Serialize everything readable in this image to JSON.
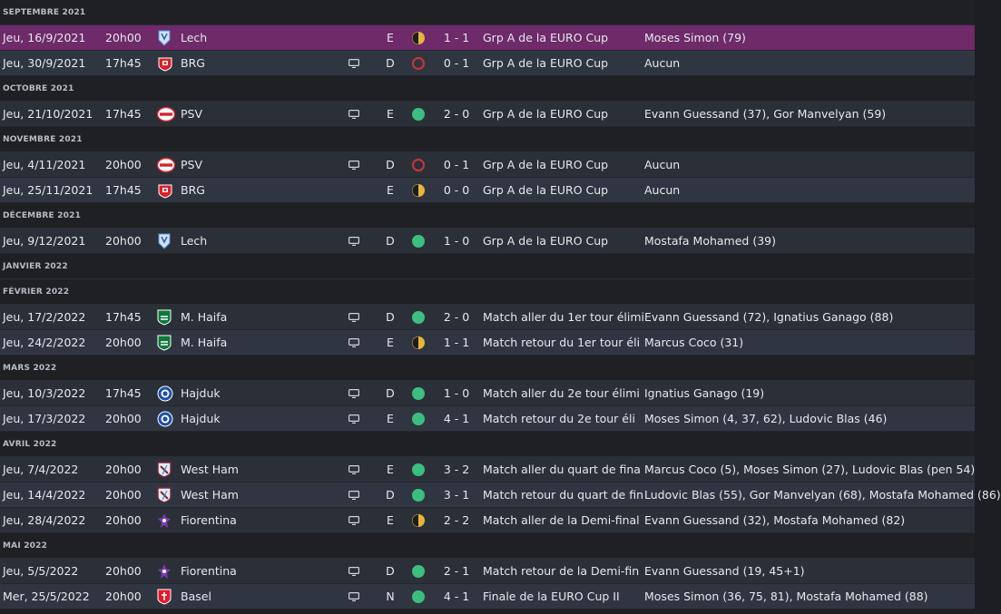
{
  "colors": {
    "win": "#3cbf7e",
    "draw": "#e8b43a",
    "loss": "#c8343a",
    "highlight_row": "#6e2a69"
  },
  "groups": [
    {
      "month": "SEPTEMBRE 2021",
      "matches": [
        {
          "date": "Jeu, 16/9/2021",
          "time": "20h00",
          "crest": "lech-crest",
          "team": "Lech",
          "tv": false,
          "venue": "E",
          "result": "draw",
          "score": "1 - 1",
          "competition": "Grp A de la EURO Cup",
          "scorers": "Moses Simon (79)",
          "highlight": true
        },
        {
          "date": "Jeu, 30/9/2021",
          "time": "17h45",
          "crest": "brg-crest",
          "team": "BRG",
          "tv": true,
          "venue": "D",
          "result": "loss",
          "score": "0 - 1",
          "competition": "Grp A de la EURO Cup",
          "scorers": "Aucun"
        }
      ]
    },
    {
      "month": "OCTOBRE 2021",
      "matches": [
        {
          "date": "Jeu, 21/10/2021",
          "time": "17h45",
          "crest": "psv-crest",
          "team": "PSV",
          "tv": true,
          "venue": "E",
          "result": "win",
          "score": "2 - 0",
          "competition": "Grp A de la EURO Cup",
          "scorers": "Evann Guessand (37), Gor Manvelyan (59)"
        }
      ]
    },
    {
      "month": "NOVEMBRE 2021",
      "matches": [
        {
          "date": "Jeu, 4/11/2021",
          "time": "20h00",
          "crest": "psv-crest",
          "team": "PSV",
          "tv": true,
          "venue": "D",
          "result": "loss",
          "score": "0 - 1",
          "competition": "Grp A de la EURO Cup",
          "scorers": "Aucun"
        },
        {
          "date": "Jeu, 25/11/2021",
          "time": "17h45",
          "crest": "brg-crest",
          "team": "BRG",
          "tv": false,
          "venue": "E",
          "result": "draw",
          "score": "0 - 0",
          "competition": "Grp A de la EURO Cup",
          "scorers": "Aucun"
        }
      ]
    },
    {
      "month": "DÉCEMBRE 2021",
      "matches": [
        {
          "date": "Jeu, 9/12/2021",
          "time": "20h00",
          "crest": "lech-crest",
          "team": "Lech",
          "tv": true,
          "venue": "D",
          "result": "win",
          "score": "1 - 0",
          "competition": "Grp A de la EURO Cup",
          "scorers": "Mostafa Mohamed (39)"
        }
      ]
    },
    {
      "month": "JANVIER 2022",
      "matches": []
    },
    {
      "month": "FÉVRIER 2022",
      "matches": [
        {
          "date": "Jeu, 17/2/2022",
          "time": "17h45",
          "crest": "haifa-crest",
          "team": "M. Haifa",
          "tv": true,
          "venue": "D",
          "result": "win",
          "score": "2 - 0",
          "competition": "Match aller du 1er tour élimi",
          "scorers": "Evann Guessand (72), Ignatius Ganago (88)"
        },
        {
          "date": "Jeu, 24/2/2022",
          "time": "20h00",
          "crest": "haifa-crest",
          "team": "M. Haifa",
          "tv": true,
          "venue": "E",
          "result": "draw",
          "score": "1 - 1",
          "competition": "Match retour du 1er tour éli",
          "scorers": "Marcus Coco (31)"
        }
      ]
    },
    {
      "month": "MARS 2022",
      "matches": [
        {
          "date": "Jeu, 10/3/2022",
          "time": "17h45",
          "crest": "hajduk-crest",
          "team": "Hajduk",
          "tv": true,
          "venue": "D",
          "result": "win",
          "score": "1 - 0",
          "competition": "Match aller du 2e tour élimi",
          "scorers": "Ignatius Ganago (19)"
        },
        {
          "date": "Jeu, 17/3/2022",
          "time": "20h00",
          "crest": "hajduk-crest",
          "team": "Hajduk",
          "tv": true,
          "venue": "E",
          "result": "win",
          "score": "4 - 1",
          "competition": "Match retour du 2e tour éli",
          "scorers": "Moses Simon (4, 37, 62), Ludovic Blas (46)"
        }
      ]
    },
    {
      "month": "AVRIL 2022",
      "matches": [
        {
          "date": "Jeu, 7/4/2022",
          "time": "20h00",
          "crest": "westham-crest",
          "team": "West Ham",
          "tv": true,
          "venue": "E",
          "result": "win",
          "score": "3 - 2",
          "competition": "Match aller du quart de fina",
          "scorers": "Marcus Coco (5), Moses Simon (27), Ludovic Blas (pen 54)"
        },
        {
          "date": "Jeu, 14/4/2022",
          "time": "20h00",
          "crest": "westham-crest",
          "team": "West Ham",
          "tv": true,
          "venue": "D",
          "result": "win",
          "score": "3 - 1",
          "competition": "Match retour du quart de fin",
          "scorers": "Ludovic Blas (55), Gor Manvelyan (68), Mostafa Mohamed (86)"
        },
        {
          "date": "Jeu, 28/4/2022",
          "time": "20h00",
          "crest": "fiorentina-crest",
          "team": "Fiorentina",
          "tv": true,
          "venue": "E",
          "result": "draw",
          "score": "2 - 2",
          "competition": "Match aller de la Demi-final",
          "scorers": "Evann Guessand (32), Mostafa Mohamed (82)"
        }
      ]
    },
    {
      "month": "MAI 2022",
      "matches": [
        {
          "date": "Jeu, 5/5/2022",
          "time": "20h00",
          "crest": "fiorentina-crest",
          "team": "Fiorentina",
          "tv": true,
          "venue": "D",
          "result": "win",
          "score": "2 - 1",
          "competition": "Match retour de la Demi-fin",
          "scorers": "Evann Guessand (19, 45+1)"
        },
        {
          "date": "Mer, 25/5/2022",
          "time": "20h00",
          "crest": "basel-crest",
          "team": "Basel",
          "tv": true,
          "venue": "N",
          "result": "win",
          "score": "4 - 1",
          "competition": "Finale de la EURO Cup II",
          "scorers": "Moses Simon (36, 75, 81), Mostafa Mohamed (88)"
        }
      ]
    }
  ]
}
